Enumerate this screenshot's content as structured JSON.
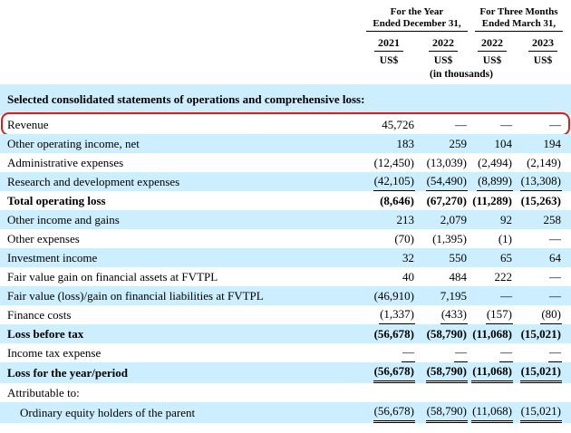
{
  "colors": {
    "stripe_blue": "#cceeff",
    "highlight_red": "#d8201a"
  },
  "header": {
    "groups": [
      {
        "line1": "For the Year",
        "line2": "Ended December 31,"
      },
      {
        "line1": "For Three Months",
        "line2": "Ended March 31,"
      }
    ],
    "years": [
      "2021",
      "2022",
      "2022",
      "2023"
    ],
    "currency_labels": [
      "US$",
      "US$",
      "US$",
      "US$"
    ],
    "units_note": "(in thousands)"
  },
  "section_header": "Selected consolidated statements of operations and comprehensive loss:",
  "rows": [
    {
      "label": "Revenue",
      "values": [
        "45,726",
        "—",
        "—",
        "—"
      ],
      "bg": "white",
      "bold": false,
      "underline": "none",
      "indent": false,
      "highlight": true
    },
    {
      "label": "Other operating income, net",
      "values": [
        "183",
        "259",
        "104",
        "194"
      ],
      "bg": "blue",
      "bold": false,
      "underline": "none",
      "indent": false,
      "highlight": false
    },
    {
      "label": "Administrative expenses",
      "values": [
        "(12,450)",
        "(13,039)",
        "(2,494)",
        "(2,149)"
      ],
      "bg": "white",
      "bold": false,
      "underline": "none",
      "indent": false,
      "highlight": false
    },
    {
      "label": "Research and development expenses",
      "values": [
        "(42,105)",
        "(54,490)",
        "(8,899)",
        "(13,308)"
      ],
      "bg": "blue",
      "bold": false,
      "underline": "single",
      "indent": false,
      "highlight": false
    },
    {
      "label": "Total operating loss",
      "values": [
        "(8,646)",
        "(67,270)",
        "(11,289)",
        "(15,263)"
      ],
      "bg": "white",
      "bold": true,
      "underline": "none",
      "indent": false,
      "highlight": false
    },
    {
      "label": "Other income and gains",
      "values": [
        "213",
        "2,079",
        "92",
        "258"
      ],
      "bg": "blue",
      "bold": false,
      "underline": "none",
      "indent": false,
      "highlight": false
    },
    {
      "label": "Other expenses",
      "values": [
        "(70)",
        "(1,395)",
        "(1)",
        "—"
      ],
      "bg": "white",
      "bold": false,
      "underline": "none",
      "indent": false,
      "highlight": false
    },
    {
      "label": "Investment income",
      "values": [
        "32",
        "550",
        "65",
        "64"
      ],
      "bg": "blue",
      "bold": false,
      "underline": "none",
      "indent": false,
      "highlight": false
    },
    {
      "label": "Fair value gain on financial assets at FVTPL",
      "values": [
        "40",
        "484",
        "222",
        "—"
      ],
      "bg": "white",
      "bold": false,
      "underline": "none",
      "indent": false,
      "highlight": false
    },
    {
      "label": "Fair value (loss)/gain on financial liabilities at FVTPL",
      "values": [
        "(46,910)",
        "7,195",
        "—",
        "—"
      ],
      "bg": "blue",
      "bold": false,
      "underline": "none",
      "indent": false,
      "highlight": false
    },
    {
      "label": "Finance costs",
      "values": [
        "(1,337)",
        "(433)",
        "(157)",
        "(80)"
      ],
      "bg": "white",
      "bold": false,
      "underline": "single",
      "indent": false,
      "highlight": false
    },
    {
      "label": "Loss before tax",
      "values": [
        "(56,678)",
        "(58,790)",
        "(11,068)",
        "(15,021)"
      ],
      "bg": "blue",
      "bold": true,
      "underline": "none",
      "indent": false,
      "highlight": false
    },
    {
      "label": "Income tax expense",
      "values": [
        "—",
        "—",
        "—",
        "—"
      ],
      "bg": "white",
      "bold": false,
      "underline": "single",
      "indent": false,
      "highlight": false
    },
    {
      "label": "Loss for the year/period",
      "values": [
        "(56,678)",
        "(58,790)",
        "(11,068)",
        "(15,021)"
      ],
      "bg": "blue",
      "bold": true,
      "underline": "double",
      "indent": false,
      "highlight": false
    },
    {
      "label": "Attributable to:",
      "values": [
        "",
        "",
        "",
        ""
      ],
      "bg": "white",
      "bold": false,
      "underline": "none",
      "indent": false,
      "highlight": false
    },
    {
      "label": "Ordinary equity holders of the parent",
      "values": [
        "(56,678)",
        "(58,790)",
        "(11,068)",
        "(15,021)"
      ],
      "bg": "blue",
      "bold": false,
      "underline": "double",
      "indent": true,
      "highlight": false
    }
  ]
}
